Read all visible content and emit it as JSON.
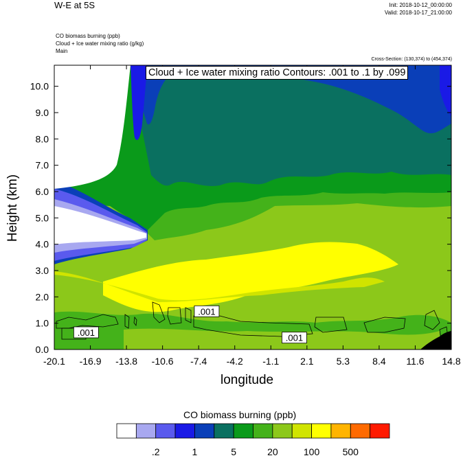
{
  "header": {
    "title": "W-E at 5S",
    "init": "Init: 2018-10-12_00:00:00",
    "valid": "Valid: 2018-10-17_21:00:00",
    "field1": "CO biomass burning   (ppb)",
    "field2": "Cloud + Ice water mixing ratio   (g/kg)",
    "field3": "Main",
    "cross_section": "Cross-Section: (130,374) to (454,374)"
  },
  "chart_data": {
    "type": "heatmap",
    "contour_label": "Cloud + Ice water mixing ratio Contours: .001 to .1 by .099",
    "xlabel": "longitude",
    "ylabel": "Height (km)",
    "xlim": [
      -20.1,
      14.8
    ],
    "ylim": [
      0.0,
      10.8
    ],
    "x_ticks": [
      "-20.1",
      "-16.9",
      "-13.8",
      "-10.6",
      "-7.4",
      "-4.2",
      "-1.1",
      "2.1",
      "5.3",
      "8.4",
      "11.6",
      "14.8"
    ],
    "y_ticks": [
      "0.0",
      "1.0",
      "2.0",
      "3.0",
      "4.0",
      "5.0",
      "6.0",
      "7.0",
      "8.0",
      "9.0",
      "10.0"
    ],
    "y_tick_values": [
      0,
      1,
      2,
      3,
      4,
      5,
      6,
      7,
      8,
      9,
      10
    ],
    "contour_value_labels": [
      {
        "text": ".001",
        "lon": -17.3,
        "z": 0.6
      },
      {
        "text": ".001",
        "lon": -6.7,
        "z": 1.4
      },
      {
        "text": ".001",
        "lon": 1.0,
        "z": 0.4
      }
    ],
    "colorbar": {
      "title": "CO biomass burning  (ppb)",
      "colors": [
        "#ffffff",
        "#a8a8f0",
        "#5a5aee",
        "#1a1ae6",
        "#0a3fb8",
        "#0a7060",
        "#0a9a1a",
        "#44b21a",
        "#8cc81a",
        "#d0e400",
        "#ffff00",
        "#ffb400",
        "#ff6a00",
        "#ff1a00"
      ],
      "tick_labels": [
        ".2",
        "1",
        "5",
        "20",
        "100",
        "500"
      ],
      "tick_boundaries": [
        2,
        4,
        6,
        8,
        10,
        12
      ]
    }
  }
}
